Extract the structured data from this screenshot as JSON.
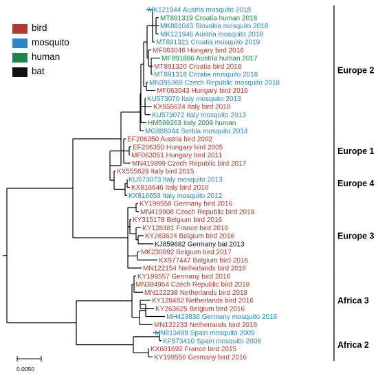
{
  "colors": {
    "bird": "#b03a2e",
    "mosquito": "#2e86c1",
    "human": "#1e8449",
    "bat": "#111111"
  },
  "legend": [
    {
      "label": "bird",
      "color": "#b03a2e"
    },
    {
      "label": "mosquito",
      "color": "#2e86c1"
    },
    {
      "label": "human",
      "color": "#1e8449"
    },
    {
      "label": "bat",
      "color": "#111111"
    }
  ],
  "taxa": [
    {
      "label": "MK121944 Austria mosquito 2018",
      "host": "mosquito"
    },
    {
      "label": "MT891319 Croatia human 2018",
      "host": "human"
    },
    {
      "label": "MK881043 Slovakia mosquito 2018",
      "host": "mosquito"
    },
    {
      "label": "MK121946 Austria mosquito 2018",
      "host": "mosquito"
    },
    {
      "label": "MT891321 Croatia mosquito 2019",
      "host": "mosquito"
    },
    {
      "label": "MF063046 Hungary bird 2016",
      "host": "bird"
    },
    {
      "label": "MF991886 Austria human 2017",
      "host": "human"
    },
    {
      "label": "MT891320 Croatia bird 2018",
      "host": "bird"
    },
    {
      "label": "MT891318 Croatia mosquito 2018",
      "host": "mosquito"
    },
    {
      "label": "MN395369 Czech Republic mosquito 2018",
      "host": "mosquito"
    },
    {
      "label": "MF063043 Hungary bird 2016",
      "host": "bird"
    },
    {
      "label": "KU573070 Italy mosquito 2013",
      "host": "mosquito"
    },
    {
      "label": "KX555624 Italy bird 2010",
      "host": "bird"
    },
    {
      "label": "KU573072 Italy mosquito 2013",
      "host": "mosquito"
    },
    {
      "label": "HM569263 Italy 2009 human",
      "host": "human"
    },
    {
      "label": "MG888044 Serbia mosquito 2014",
      "host": "mosquito"
    },
    {
      "label": "EF206350 Austria bird 2002",
      "host": "bird"
    },
    {
      "label": "EF206350 Hungary bird 2005",
      "host": "bird"
    },
    {
      "label": "MF063051 Hungary bird 2011",
      "host": "bird"
    },
    {
      "label": "MN419899 Czech Republic bird 2017",
      "host": "bird"
    },
    {
      "label": "KX555629 Italy bird 2015",
      "host": "bird"
    },
    {
      "label": "KU573073 Italy mosquito 2013",
      "host": "mosquito"
    },
    {
      "label": "KX816646 Italy bird 2010",
      "host": "bird"
    },
    {
      "label": "KX816653 Italy mosquito 2012",
      "host": "mosquito"
    },
    {
      "label": "KY199558 Germany bird 2016",
      "host": "bird"
    },
    {
      "label": "MN419908 Czech Republic bird 2018",
      "host": "bird"
    },
    {
      "label": "KY315178 Belgium bird 2016",
      "host": "bird"
    },
    {
      "label": "KY128481 France bird 2016",
      "host": "bird"
    },
    {
      "label": "KY263624 Belgium bird 2016",
      "host": "bird"
    },
    {
      "label": "KJ859682 Germany bat 2013",
      "host": "bat"
    },
    {
      "label": "MK230892 Belgium bird 2017",
      "host": "bird"
    },
    {
      "label": "KX977447 Belgium bird 2016",
      "host": "bird"
    },
    {
      "label": "MN122154 Netherlands bird 2016",
      "host": "bird"
    },
    {
      "label": "KY199557 Germany bird 2016",
      "host": "bird"
    },
    {
      "label": "MN384964 Czech Republic bird 2018",
      "host": "bird"
    },
    {
      "label": "MN122238 Netherlands bird 2018",
      "host": "bird"
    },
    {
      "label": "KY128482 Netherlands bird 2016",
      "host": "bird"
    },
    {
      "label": "KY263625 Belgium bird 2016",
      "host": "bird"
    },
    {
      "label": "MH423836 Germany mosquito 2016",
      "host": "mosquito"
    },
    {
      "label": "MN122233 Netherlands bird 2018",
      "host": "bird"
    },
    {
      "label": "MN813489 Spain mosquito 2009",
      "host": "mosquito"
    },
    {
      "label": "KF573410 Spain mosquito 2006",
      "host": "mosquito"
    },
    {
      "label": "KX601692 France bird 2015",
      "host": "bird"
    },
    {
      "label": "KY199556 Germany bird 2016",
      "host": "bird"
    }
  ],
  "clades": [
    {
      "label": "Europe 2"
    },
    {
      "label": "Europe 1"
    },
    {
      "label": "Europe 4"
    },
    {
      "label": "Europe 3"
    },
    {
      "label": "Africa 3"
    },
    {
      "label": "Africa 2"
    }
  ],
  "scale_bar": {
    "label": "0.0050"
  }
}
